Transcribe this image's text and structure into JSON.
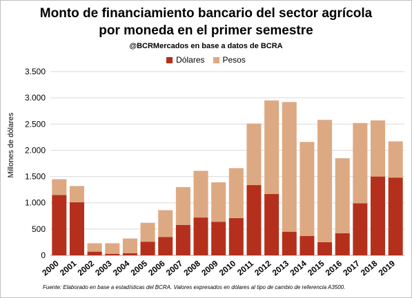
{
  "chart_data": {
    "type": "bar",
    "stacked": true,
    "title_lines": [
      "Monto de financiamiento bancario del sector agrícola",
      "por moneda en el primer semestre"
    ],
    "subtitle": "@BCRMercados en base a datos de BCRA",
    "ylabel": "Millones de dólares",
    "xlabel": "",
    "ylim": [
      0,
      3500
    ],
    "yticks": [
      0,
      500,
      1000,
      1500,
      2000,
      2500,
      3000,
      3500
    ],
    "ytick_labels": [
      "0",
      "500",
      "1.000",
      "1.500",
      "2.000",
      "2.500",
      "3.000",
      "3.500"
    ],
    "grid": true,
    "legend_position": "top",
    "categories": [
      "2000",
      "2001",
      "2002",
      "2003",
      "2004",
      "2005",
      "2006",
      "2007",
      "2008",
      "2009",
      "2010",
      "2011",
      "2012",
      "2013",
      "2014",
      "2015",
      "2016",
      "2017",
      "2018",
      "2019"
    ],
    "series": [
      {
        "name": "Dólares",
        "color": "#b5301c",
        "values": [
          1150,
          1010,
          70,
          30,
          40,
          260,
          350,
          580,
          720,
          640,
          710,
          1340,
          1170,
          450,
          370,
          250,
          420,
          990,
          1500,
          1480
        ]
      },
      {
        "name": "Pesos",
        "color": "#dda983",
        "values": [
          300,
          310,
          160,
          200,
          280,
          360,
          510,
          720,
          890,
          750,
          950,
          1170,
          1780,
          2470,
          1790,
          2330,
          1430,
          1530,
          1070,
          690
        ]
      }
    ],
    "source_note": "Fuente: Elaborado en base a estadísticas del BCRA. Valores expresados en dólares al tipo de cambio de referencia A3500."
  }
}
